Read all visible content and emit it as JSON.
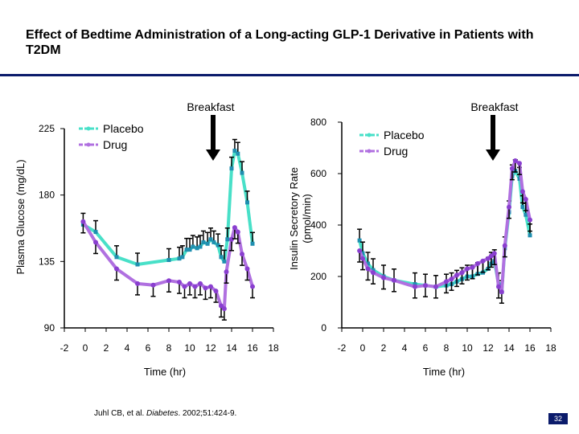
{
  "slide": {
    "title": "Effect of Bedtime Administration of a Long-acting GLP-1 Derivative in Patients with T2DM",
    "citation_prefix": "Juhl CB, et al. ",
    "citation_journal": "Diabetes",
    "citation_suffix": ". 2002;51:424-9.",
    "page_number": "32",
    "colors": {
      "placebo": "#48e0c8",
      "drug": "#b070e0",
      "accent": "#0b1b6b"
    }
  },
  "chart_data": [
    {
      "type": "line",
      "ylabel": "Plasma Glucose (mg/dL)",
      "xlabel": "Time (hr)",
      "annotation": "Breakfast",
      "annotation_x": 13.2,
      "ylim": [
        90,
        225
      ],
      "yticks": [
        90,
        135,
        180,
        225
      ],
      "xlim": [
        -2,
        18
      ],
      "xticks": [
        -2,
        0,
        2,
        4,
        6,
        8,
        10,
        12,
        14,
        16,
        18
      ],
      "legend": [
        "Placebo",
        "Drug"
      ],
      "series": [
        {
          "name": "Placebo",
          "x": [
            -0.2,
            1,
            3,
            5,
            8,
            9,
            9.3,
            9.7,
            10,
            10.3,
            10.7,
            11,
            11.3,
            11.7,
            12,
            12.3,
            12.7,
            13,
            13.3,
            13.6,
            14,
            14.3,
            14.6,
            15,
            15.5,
            16
          ],
          "values": [
            160,
            155,
            138,
            133,
            136,
            137,
            138,
            143,
            143,
            145,
            144,
            145,
            148,
            147,
            150,
            148,
            146,
            138,
            135,
            150,
            198,
            210,
            208,
            195,
            175,
            147
          ]
        },
        {
          "name": "Drug",
          "x": [
            -0.2,
            1,
            3,
            5,
            6.5,
            8,
            9,
            9.5,
            10,
            10.5,
            11,
            11.5,
            12,
            12.5,
            13,
            13.3,
            13.5,
            14,
            14.3,
            14.6,
            15,
            15.5,
            16
          ],
          "values": [
            162,
            148,
            130,
            120,
            119,
            122,
            121,
            118,
            120,
            118,
            120,
            117,
            118,
            115,
            105,
            103,
            128,
            150,
            158,
            155,
            140,
            130,
            118
          ]
        }
      ]
    },
    {
      "type": "line",
      "ylabel": "Insulin Secretory Rate (pmol/min)",
      "xlabel": "Time (hr)",
      "annotation": "Breakfast",
      "annotation_x": 13.8,
      "ylim": [
        0,
        800
      ],
      "yticks": [
        0,
        200,
        400,
        600,
        800
      ],
      "xlim": [
        -2,
        18
      ],
      "xticks": [
        -2,
        0,
        2,
        4,
        6,
        8,
        10,
        12,
        14,
        16,
        18
      ],
      "legend": [
        "Placebo",
        "Drug"
      ],
      "series": [
        {
          "name": "Placebo",
          "x": [
            -0.3,
            0,
            0.5,
            1,
            2,
            3,
            5,
            6,
            7,
            8,
            8.5,
            9,
            9.5,
            10,
            10.5,
            11,
            11.5,
            12,
            12.3,
            12.6,
            13,
            13.3,
            13.6,
            14,
            14.3,
            14.6,
            15,
            15.3,
            15.6,
            16
          ],
          "values": [
            340,
            290,
            250,
            225,
            200,
            185,
            170,
            165,
            160,
            165,
            170,
            180,
            190,
            200,
            200,
            210,
            215,
            230,
            250,
            260,
            170,
            140,
            310,
            450,
            590,
            610,
            580,
            470,
            440,
            360
          ]
        },
        {
          "name": "Drug",
          "x": [
            -0.3,
            0,
            0.5,
            1,
            2,
            3,
            5,
            6,
            7,
            8,
            8.5,
            9,
            9.5,
            10,
            10.5,
            11,
            11.5,
            12,
            12.3,
            12.6,
            13,
            13.3,
            13.6,
            14,
            14.3,
            14.6,
            15,
            15.3,
            15.6,
            16
          ],
          "values": [
            300,
            270,
            230,
            215,
            195,
            185,
            160,
            165,
            160,
            180,
            190,
            205,
            215,
            230,
            235,
            250,
            260,
            270,
            280,
            290,
            160,
            140,
            320,
            470,
            620,
            650,
            640,
            530,
            500,
            420
          ]
        }
      ]
    }
  ]
}
